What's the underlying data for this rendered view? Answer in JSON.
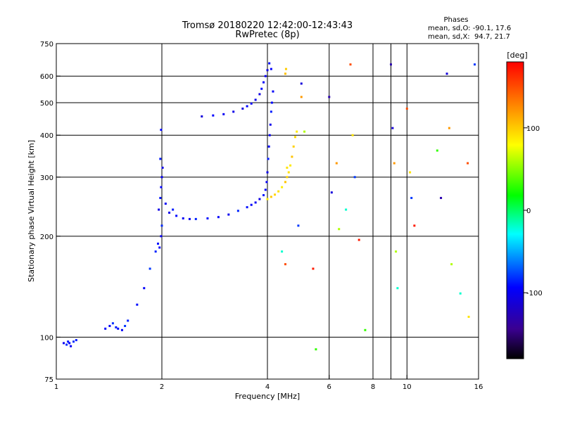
{
  "chart_data": {
    "type": "scatter",
    "title": "Tromsø 20180220 12:42:00-12:43:43",
    "subtitle": "RwPretec (8p)",
    "phases": {
      "heading": "Phases",
      "line_o": "mean, sd,O: -90.1, 17.6",
      "line_x": "mean, sd,X:  94.7, 21.7"
    },
    "xlabel": "Frequency [MHz]",
    "ylabel": "Stationary phase Virtual Height [km]",
    "x_scale": "log",
    "y_scale": "log",
    "xlim": [
      1,
      16
    ],
    "ylim": [
      75,
      750
    ],
    "x_ticks": [
      {
        "value": 1,
        "label": "1"
      },
      {
        "value": 2,
        "label": "2"
      },
      {
        "value": 4,
        "label": "4"
      },
      {
        "value": 6,
        "label": "6"
      },
      {
        "value": 8,
        "label": "8"
      },
      {
        "value": 10,
        "label": "10"
      },
      {
        "value": 16,
        "label": "16"
      }
    ],
    "y_ticks": [
      {
        "value": 75,
        "label": "75"
      },
      {
        "value": 100,
        "label": "100"
      },
      {
        "value": 200,
        "label": "200"
      },
      {
        "value": 300,
        "label": "300"
      },
      {
        "value": 400,
        "label": "400"
      },
      {
        "value": 500,
        "label": "500"
      },
      {
        "value": 600,
        "label": "600"
      },
      {
        "value": 750,
        "label": "750"
      }
    ],
    "x_gridlines": [
      2,
      4,
      6,
      8,
      9,
      10
    ],
    "y_gridlines": [
      100,
      200,
      300,
      400,
      500,
      600
    ],
    "grid": true,
    "colorbar": {
      "label": "[deg]",
      "min": -180,
      "max": 180,
      "ticks": [
        {
          "value": 100,
          "label": "100"
        },
        {
          "value": 0,
          "label": "0"
        },
        {
          "value": -100,
          "label": "-100"
        }
      ]
    },
    "series": [
      {
        "trace": "low_e_trace",
        "phase": -90,
        "points": [
          [
            1.05,
            96
          ],
          [
            1.07,
            95
          ],
          [
            1.08,
            97
          ],
          [
            1.09,
            96
          ],
          [
            1.1,
            94
          ],
          [
            1.12,
            97
          ],
          [
            1.14,
            98
          ],
          [
            1.38,
            106
          ],
          [
            1.42,
            108
          ],
          [
            1.45,
            110
          ],
          [
            1.48,
            107
          ],
          [
            1.5,
            106
          ],
          [
            1.54,
            105
          ],
          [
            1.57,
            108
          ],
          [
            1.6,
            112
          ],
          [
            1.7,
            125
          ],
          [
            1.78,
            140
          ],
          [
            1.85,
            160
          ],
          [
            1.92,
            180
          ],
          [
            1.95,
            190
          ],
          [
            1.97,
            185
          ],
          [
            1.99,
            200
          ],
          [
            2.0,
            215
          ]
        ]
      },
      {
        "trace": "o_lower_branch",
        "phase": -95,
        "points": [
          [
            1.96,
            240
          ],
          [
            1.98,
            260
          ],
          [
            1.99,
            280
          ],
          [
            2.0,
            300
          ],
          [
            2.01,
            320
          ],
          [
            1.98,
            340
          ],
          [
            1.99,
            415
          ],
          [
            2.05,
            250
          ],
          [
            2.1,
            235
          ],
          [
            2.15,
            240
          ],
          [
            2.2,
            230
          ],
          [
            2.3,
            226
          ],
          [
            2.4,
            225
          ],
          [
            2.5,
            225
          ],
          [
            2.7,
            226
          ],
          [
            2.9,
            228
          ],
          [
            3.1,
            232
          ],
          [
            3.3,
            238
          ],
          [
            3.5,
            244
          ],
          [
            3.6,
            248
          ],
          [
            3.7,
            252
          ],
          [
            3.8,
            258
          ],
          [
            3.9,
            265
          ],
          [
            3.95,
            275
          ],
          [
            3.98,
            290
          ],
          [
            4.0,
            310
          ],
          [
            4.02,
            340
          ],
          [
            4.04,
            370
          ],
          [
            4.06,
            400
          ],
          [
            4.08,
            430
          ],
          [
            4.1,
            470
          ],
          [
            4.12,
            500
          ],
          [
            4.15,
            540
          ]
        ]
      },
      {
        "trace": "o_upper_branch",
        "phase": -100,
        "points": [
          [
            2.6,
            455
          ],
          [
            2.8,
            458
          ],
          [
            3.0,
            462
          ],
          [
            3.2,
            470
          ],
          [
            3.4,
            480
          ],
          [
            3.5,
            488
          ],
          [
            3.6,
            497
          ],
          [
            3.7,
            510
          ],
          [
            3.8,
            530
          ],
          [
            3.85,
            550
          ],
          [
            3.9,
            575
          ],
          [
            3.95,
            600
          ],
          [
            4.0,
            625
          ],
          [
            4.05,
            655
          ],
          [
            4.1,
            630
          ]
        ]
      },
      {
        "trace": "x_branch",
        "phase": 95,
        "points": [
          [
            4.0,
            258
          ],
          [
            4.1,
            262
          ],
          [
            4.2,
            266
          ],
          [
            4.3,
            272
          ],
          [
            4.4,
            280
          ],
          [
            4.5,
            290
          ],
          [
            4.55,
            300
          ],
          [
            4.6,
            310
          ],
          [
            4.65,
            325
          ],
          [
            4.7,
            345
          ],
          [
            4.75,
            370
          ],
          [
            4.8,
            395
          ],
          [
            4.85,
            410
          ],
          [
            4.5,
            610
          ],
          [
            4.52,
            630
          ]
        ]
      },
      {
        "trace": "scattered_echoes",
        "phase": 0,
        "points": [
          [
            5.0,
            570
          ],
          [
            5.0,
            520
          ],
          [
            5.1,
            410
          ],
          [
            4.4,
            180
          ],
          [
            4.5,
            165
          ],
          [
            4.55,
            320
          ],
          [
            4.9,
            215
          ],
          [
            5.4,
            160
          ],
          [
            5.5,
            92
          ],
          [
            6.0,
            520
          ],
          [
            6.1,
            270
          ],
          [
            6.3,
            330
          ],
          [
            6.4,
            210
          ],
          [
            6.7,
            240
          ],
          [
            6.9,
            650
          ],
          [
            7.0,
            400
          ],
          [
            7.1,
            300
          ],
          [
            7.3,
            195
          ],
          [
            7.6,
            105
          ],
          [
            9.0,
            650
          ],
          [
            9.1,
            420
          ],
          [
            9.2,
            330
          ],
          [
            9.3,
            180
          ],
          [
            9.4,
            140
          ],
          [
            10.0,
            480
          ],
          [
            10.2,
            310
          ],
          [
            10.3,
            260
          ],
          [
            10.5,
            215
          ],
          [
            12.2,
            360
          ],
          [
            12.5,
            260
          ],
          [
            13.0,
            610
          ],
          [
            13.2,
            420
          ],
          [
            13.4,
            165
          ],
          [
            14.2,
            135
          ],
          [
            14.9,
            330
          ],
          [
            15.0,
            115
          ],
          [
            15.6,
            650
          ]
        ]
      }
    ]
  }
}
